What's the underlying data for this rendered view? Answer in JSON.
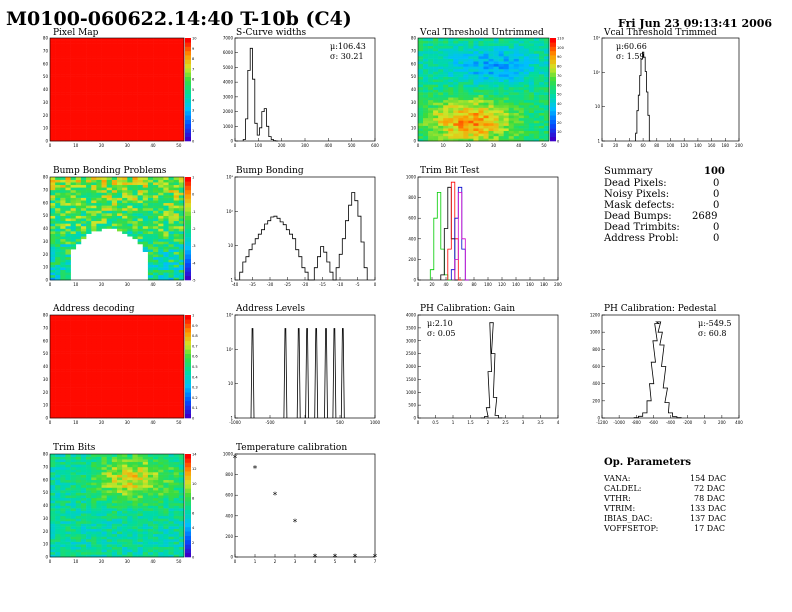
{
  "header": {
    "title": "M0100-060622.14:40 T-10b (C4)",
    "date": "Fri Jun 23 09:13:41 2006"
  },
  "panels": [
    {
      "id": "pixel_map",
      "title": "Pixel Map"
    },
    {
      "id": "scurve",
      "title": "S-Curve widths",
      "stats": [
        "μ:106.43",
        "σ: 30.21"
      ]
    },
    {
      "id": "vcal_untrimmed",
      "title": "Vcal Threshold Untrimmed"
    },
    {
      "id": "vcal_trimmed",
      "title": "Vcal Threshold Trimmed",
      "stats": [
        "μ:60.66",
        "σ: 1.59"
      ]
    },
    {
      "id": "bump_problems",
      "title": "Bump Bonding Problems"
    },
    {
      "id": "bump_bonding",
      "title": "Bump Bonding"
    },
    {
      "id": "trim_bit_test",
      "title": "Trim Bit Test"
    },
    {
      "id": "address_decoding",
      "title": "Address decoding"
    },
    {
      "id": "address_levels",
      "title": "Address Levels"
    },
    {
      "id": "ph_gain",
      "title": "PH Calibration: Gain",
      "stats": [
        "μ:2.10",
        "σ: 0.05"
      ]
    },
    {
      "id": "ph_pedestal",
      "title": "PH Calibration: Pedestal",
      "stats": [
        "μ:-549.5",
        "σ: 60.8"
      ]
    },
    {
      "id": "trim_bits",
      "title": "Trim Bits"
    },
    {
      "id": "temp_cal",
      "title": "Temperature calibration"
    }
  ],
  "summary": {
    "heading": "Summary",
    "heading_value": "100",
    "rows": [
      {
        "label": "Dead Pixels:",
        "value": "0"
      },
      {
        "label": "Noisy Pixels:",
        "value": "0"
      },
      {
        "label": "Mask defects:",
        "value": "0"
      },
      {
        "label": "Dead Bumps:",
        "value": "2689"
      },
      {
        "label": "Dead Trimbits:",
        "value": "0"
      },
      {
        "label": "Address Probl:",
        "value": "0"
      }
    ]
  },
  "op_params": {
    "heading": "Op. Parameters",
    "rows": [
      {
        "label": "VANA:",
        "value": "154 DAC"
      },
      {
        "label": "CALDEL:",
        "value": "72 DAC"
      },
      {
        "label": "VTHR:",
        "value": "78 DAC"
      },
      {
        "label": "VTRIM:",
        "value": "133 DAC"
      },
      {
        "label": "IBIAS_DAC:",
        "value": "137 DAC"
      },
      {
        "label": "VOFFSETOP:",
        "value": "17 DAC"
      }
    ]
  },
  "chart_data": [
    {
      "panel": "pixel_map",
      "type": "heatmap",
      "xlim": [
        0,
        52
      ],
      "ylim": [
        0,
        80
      ],
      "xticks": [
        "0",
        "10",
        "20",
        "30",
        "40",
        "50"
      ],
      "yticks": [
        "0",
        "10",
        "20",
        "30",
        "40",
        "50",
        "60",
        "70",
        "80"
      ],
      "pattern": "uniform",
      "zlim": [
        0,
        10
      ],
      "zticks": [
        "0",
        "1",
        "2",
        "3",
        "4",
        "5",
        "6",
        "7",
        "8",
        "9",
        "10"
      ]
    },
    {
      "panel": "scurve",
      "type": "histogram",
      "xlim": [
        0,
        600
      ],
      "ylim": [
        0,
        7000
      ],
      "xticks": [
        "0",
        "100",
        "200",
        "300",
        "400",
        "500",
        "600"
      ],
      "yticks": [
        "0",
        "1000",
        "2000",
        "3000",
        "4000",
        "5000",
        "6000",
        "7000"
      ],
      "x": [
        40,
        50,
        60,
        70,
        80,
        90,
        100,
        110,
        120,
        130,
        140,
        150,
        160,
        170,
        180
      ],
      "y": [
        100,
        1500,
        4800,
        6300,
        4200,
        1200,
        400,
        900,
        2000,
        2200,
        1000,
        300,
        100,
        30,
        0
      ]
    },
    {
      "panel": "vcal_untrimmed",
      "type": "heatmap",
      "xlim": [
        0,
        52
      ],
      "ylim": [
        0,
        80
      ],
      "xticks": [
        "0",
        "10",
        "20",
        "30",
        "40",
        "50"
      ],
      "yticks": [
        "0",
        "10",
        "20",
        "30",
        "40",
        "50",
        "60",
        "70",
        "80"
      ],
      "pattern": "threshold",
      "zlim": [
        0,
        110
      ],
      "zticks": [
        "0",
        "10",
        "20",
        "30",
        "40",
        "50",
        "60",
        "70",
        "80",
        "90",
        "100",
        "110"
      ]
    },
    {
      "panel": "vcal_trimmed",
      "type": "histogram",
      "log": true,
      "xlim": [
        0,
        200
      ],
      "ylim": [
        1,
        10000
      ],
      "xticks": [
        "0",
        "20",
        "40",
        "60",
        "80",
        "100",
        "120",
        "140",
        "160",
        "180",
        "200"
      ],
      "yticks": [
        "1",
        "10",
        "10²",
        "10³"
      ],
      "x": [
        50,
        52,
        54,
        56,
        58,
        60,
        62,
        64,
        66,
        68,
        70
      ],
      "y": [
        2,
        15,
        60,
        350,
        1500,
        2800,
        1800,
        500,
        80,
        10,
        1
      ]
    },
    {
      "panel": "bump_problems",
      "type": "heatmap",
      "xlim": [
        0,
        52
      ],
      "ylim": [
        0,
        80
      ],
      "xticks": [
        "0",
        "10",
        "20",
        "30",
        "40",
        "50"
      ],
      "yticks": [
        "0",
        "10",
        "20",
        "30",
        "40",
        "50",
        "60",
        "70",
        "80"
      ],
      "pattern": "bump",
      "zlim": [
        -5,
        1
      ],
      "zticks": [
        "-5",
        "-4",
        "-3",
        "-2",
        "-1",
        "0",
        "1"
      ]
    },
    {
      "panel": "bump_bonding",
      "type": "histogram",
      "log": true,
      "xlim": [
        -40,
        5
      ],
      "ylim": [
        1,
        10000
      ],
      "xticks": [
        "-40",
        "-35",
        "-30",
        "-25",
        "-20",
        "-15",
        "-10",
        "-5",
        "0"
      ],
      "yticks": [
        "1",
        "10",
        "10²",
        "10³"
      ],
      "x": [
        -38,
        -37,
        -36,
        -35,
        -34,
        -33,
        -32,
        -31,
        -30,
        -29,
        -28,
        -27,
        -26,
        -25,
        -24,
        -23,
        -22,
        -21,
        -20,
        -19,
        -18,
        -17,
        -16,
        -15,
        -14,
        -13,
        -12,
        -11,
        -10,
        -9,
        -8,
        -7,
        -6,
        -5,
        -4,
        -3,
        -2,
        -1,
        0,
        1,
        2
      ],
      "y": [
        2,
        5,
        8,
        15,
        25,
        40,
        60,
        90,
        150,
        200,
        280,
        300,
        250,
        180,
        140,
        90,
        60,
        40,
        15,
        8,
        3,
        2,
        1,
        1,
        3,
        8,
        20,
        12,
        5,
        2,
        1,
        3,
        10,
        40,
        200,
        800,
        2500,
        1200,
        300,
        30,
        3
      ]
    },
    {
      "panel": "trim_bit_test",
      "type": "histogram",
      "xlim": [
        0,
        200
      ],
      "ylim": [
        0,
        1000
      ],
      "xticks": [
        "0",
        "20",
        "40",
        "60",
        "80",
        "100",
        "120",
        "140",
        "160",
        "180",
        "200"
      ],
      "yticks": [
        "0",
        "200",
        "400",
        "600",
        "800",
        "1000"
      ],
      "series": [
        {
          "color": "#00cc00",
          "x": [
            20,
            25,
            30,
            35,
            40,
            45
          ],
          "y": [
            100,
            600,
            850,
            300,
            50,
            0
          ]
        },
        {
          "color": "#000000",
          "x": [
            35,
            40,
            45,
            50,
            55
          ],
          "y": [
            50,
            500,
            900,
            400,
            0
          ]
        },
        {
          "color": "#ff0000",
          "x": [
            45,
            50,
            55,
            60
          ],
          "y": [
            300,
            950,
            400,
            0
          ]
        },
        {
          "color": "#0000cc",
          "x": [
            50,
            55,
            60,
            65,
            70
          ],
          "y": [
            100,
            600,
            900,
            300,
            0
          ]
        },
        {
          "color": "#cc00cc",
          "x": [
            55,
            60,
            65,
            70
          ],
          "y": [
            200,
            850,
            400,
            0
          ]
        }
      ]
    },
    {
      "panel": "address_decoding",
      "type": "heatmap",
      "xlim": [
        0,
        52
      ],
      "ylim": [
        0,
        80
      ],
      "xticks": [
        "0",
        "10",
        "20",
        "30",
        "40",
        "50"
      ],
      "yticks": [
        "0",
        "10",
        "20",
        "30",
        "40",
        "50",
        "60",
        "70",
        "80"
      ],
      "pattern": "uniform",
      "zlim": [
        0,
        1
      ],
      "zticks": [
        "0",
        "0.1",
        "0.2",
        "0.3",
        "0.4",
        "0.5",
        "0.6",
        "0.7",
        "0.8",
        "0.9",
        "1"
      ]
    },
    {
      "panel": "address_levels",
      "type": "histogram",
      "log": true,
      "xlim": [
        -1000,
        1000
      ],
      "ylim": [
        1,
        10000
      ],
      "xticks": [
        "-1000",
        "-500",
        "0",
        "500",
        "1000"
      ],
      "yticks": [
        "1",
        "10",
        "10²",
        "10³"
      ],
      "peaks": [
        -750,
        -280,
        -90,
        30,
        160,
        300,
        420,
        540
      ],
      "peak_height": 3000
    },
    {
      "panel": "ph_gain",
      "type": "histogram",
      "xlim": [
        0,
        4
      ],
      "ylim": [
        0,
        4000
      ],
      "xticks": [
        "0",
        "0.5",
        "1",
        "1.5",
        "2",
        "2.5",
        "3",
        "3.5",
        "4"
      ],
      "yticks": [
        "0",
        "500",
        "1000",
        "1500",
        "2000",
        "2500",
        "3000",
        "3500",
        "4000"
      ],
      "x": [
        1.85,
        1.95,
        2.0,
        2.05,
        2.1,
        2.15,
        2.2,
        2.25,
        2.35
      ],
      "y": [
        5,
        60,
        400,
        1800,
        3700,
        2500,
        800,
        100,
        5
      ]
    },
    {
      "panel": "ph_pedestal",
      "type": "histogram",
      "xlim": [
        -1200,
        400
      ],
      "ylim": [
        0,
        1200
      ],
      "xticks": [
        "-1200",
        "-1000",
        "-800",
        "-600",
        "-400",
        "-200",
        "0",
        "200",
        "400"
      ],
      "yticks": [
        "0",
        "200",
        "400",
        "600",
        "800",
        "1000",
        "1200"
      ],
      "x": [
        -800,
        -750,
        -700,
        -650,
        -620,
        -600,
        -580,
        -560,
        -540,
        -520,
        -500,
        -480,
        -460,
        -440,
        -400,
        -350,
        -300
      ],
      "y": [
        5,
        20,
        60,
        200,
        400,
        650,
        900,
        1100,
        1120,
        1000,
        850,
        600,
        350,
        180,
        60,
        15,
        3
      ]
    },
    {
      "panel": "trim_bits",
      "type": "heatmap",
      "xlim": [
        0,
        52
      ],
      "ylim": [
        0,
        80
      ],
      "xticks": [
        "0",
        "10",
        "20",
        "30",
        "40",
        "50"
      ],
      "yticks": [
        "0",
        "10",
        "20",
        "30",
        "40",
        "50",
        "60",
        "70",
        "80"
      ],
      "pattern": "trim",
      "zlim": [
        0,
        15
      ],
      "zticks": [
        "0",
        "2",
        "4",
        "6",
        "8",
        "10",
        "12",
        "14"
      ]
    },
    {
      "panel": "temp_cal",
      "type": "scatter",
      "xlim": [
        0,
        7
      ],
      "ylim": [
        0,
        1000
      ],
      "xticks": [
        "0",
        "1",
        "2",
        "3",
        "4",
        "5",
        "6",
        "7"
      ],
      "yticks": [
        "0",
        "200",
        "400",
        "600",
        "800",
        "1000"
      ],
      "x": [
        0,
        1,
        2,
        3,
        4,
        5,
        6,
        7
      ],
      "y": [
        960,
        860,
        600,
        340,
        0,
        0,
        0,
        0
      ]
    }
  ]
}
